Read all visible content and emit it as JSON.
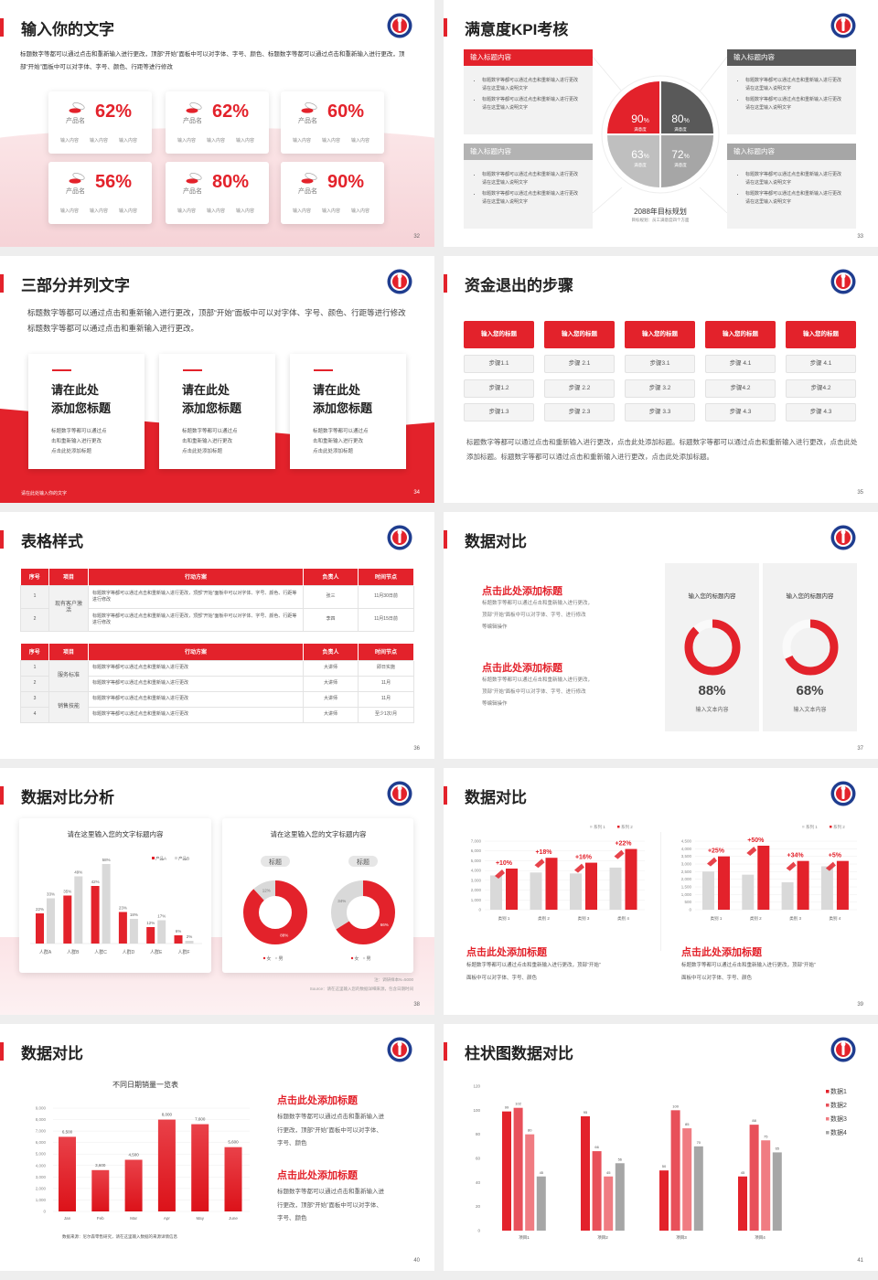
{
  "colors": {
    "accent": "#e3222b",
    "dark": "#595959",
    "gray": "#a6a6a6",
    "light": "#d9d9d9",
    "pink": "#f9dfe2",
    "blue": "#1f3d8f"
  },
  "logo_icon": "school-emblem-icon",
  "s32": {
    "title": "输入你的文字",
    "page": "32",
    "body": "标题数字等都可以通过点击和重新输入进行更改，顶部“开始”面板中可以对字体、字号、颜色、标题数字等都可以通过点击和重新输入进行更改，顶部“开始”面板中可以对字体、字号、颜色、行距等进行修改",
    "cards": [
      {
        "value": "62%",
        "name": "产品名",
        "items": [
          "输入内容",
          "输入内容",
          "输入内容"
        ]
      },
      {
        "value": "62%",
        "name": "产品名",
        "items": [
          "输入内容",
          "输入内容",
          "输入内容"
        ]
      },
      {
        "value": "60%",
        "name": "产品名",
        "items": [
          "输入内容",
          "输入内容",
          "输入内容"
        ]
      },
      {
        "value": "56%",
        "name": "产品名",
        "items": [
          "输入内容",
          "输入内容",
          "输入内容"
        ]
      },
      {
        "value": "80%",
        "name": "产品名",
        "items": [
          "输入内容",
          "输入内容",
          "输入内容"
        ]
      },
      {
        "value": "90%",
        "name": "产品名",
        "items": [
          "输入内容",
          "输入内容",
          "输入内容"
        ]
      }
    ]
  },
  "s33": {
    "title": "满意度KPI考核",
    "page": "33",
    "boxes": [
      {
        "header": "输入标题内容",
        "bullets": [
          "标题数字等都可以通过点击和重新输入进行更改 请在这里输入说明文字",
          "标题数字等都可以通过点击和重新输入进行更改 请在这里输入说明文字"
        ]
      },
      {
        "header": "输入标题内容",
        "bullets": [
          "标题数字等都可以通过点击和重新输入进行更改 请在这里输入说明文字",
          "标题数字等都可以通过点击和重新输入进行更改 请在这里输入说明文字"
        ]
      },
      {
        "header": "输入标题内容",
        "bullets": [
          "标题数字等都可以通过点击和重新输入进行更改 请在这里输入说明文字",
          "标题数字等都可以通过点击和重新输入进行更改 请在这里输入说明文字"
        ]
      },
      {
        "header": "输入标题内容",
        "bullets": [
          "标题数字等都可以通过点击和重新输入进行更改 请在这里输入说明文字",
          "标题数字等都可以通过点击和重新输入进行更改 请在这里输入说明文字"
        ]
      }
    ],
    "quadrants": [
      {
        "value": "90",
        "unit": "%",
        "label": "满意度",
        "color": "#e3222b"
      },
      {
        "value": "80",
        "unit": "%",
        "label": "满意度",
        "color": "#595959"
      },
      {
        "value": "63",
        "unit": "%",
        "label": "满意度",
        "color": "#bfbfbf"
      },
      {
        "value": "72",
        "unit": "%",
        "label": "满意度",
        "color": "#a6a6a6"
      }
    ],
    "plan_title": "2088年目标规划",
    "plan_sub": "目标规划：员工满意度四个方面"
  },
  "s34": {
    "title": "三部分并列文字",
    "page": "34",
    "body": "标题数字等都可以通过点击和重新输入进行更改，顶部“开始”面板中可以对字体、字号、颜色、行距等进行修改标题数字等都可以通过点击和重新输入进行更改。",
    "cards": [
      {
        "line1": "请在此处",
        "line2": "添加您标题",
        "text": [
          "标题数字等都可以通过点",
          "击和重新输入进行更改",
          "点击此处添加标题"
        ]
      },
      {
        "line1": "请在此处",
        "line2": "添加您标题",
        "text": [
          "标题数字等都可以通过点",
          "击和重新输入进行更改",
          "点击此处添加标题"
        ]
      },
      {
        "line1": "请在此处",
        "line2": "添加您标题",
        "text": [
          "标题数字等都可以通过点",
          "击和重新输入进行更改",
          "点击此处添加标题"
        ]
      }
    ],
    "footer": "请在此处输入你的文字"
  },
  "s35": {
    "title": "资金退出的步骤",
    "page": "35",
    "columns": [
      {
        "header": "输入您的标题",
        "steps": [
          "步骤1.1",
          "步骤1.2",
          "步骤1.3"
        ]
      },
      {
        "header": "输入您的标题",
        "steps": [
          "步骤 2.1",
          "步骤 2.2",
          "步骤 2.3"
        ]
      },
      {
        "header": "输入您的标题",
        "steps": [
          "步骤3.1",
          "步骤 3.2",
          "步骤 3.3"
        ]
      },
      {
        "header": "输入您的标题",
        "steps": [
          "步骤 4.1",
          "步骤4.2",
          "步骤 4.3"
        ]
      },
      {
        "header": "输入您的标题",
        "steps": [
          "步骤 4.1",
          "步骤4.2",
          "步骤 4.3"
        ]
      }
    ],
    "body": "标题数字等都可以通过点击和重新输入进行更改，点击此处添加标题。标题数字等都可以通过点击和重新输入进行更改，点击此处添加标题。标题数字等都可以通过点击和重新输入进行更改，点击此处添加标题。"
  },
  "s36": {
    "title": "表格样式",
    "page": "36",
    "headers": [
      "序号",
      "项目",
      "行动方案",
      "负责人",
      "时间节点"
    ],
    "table1": {
      "groups": [
        {
          "project": "现有客户激活",
          "rows": [
            {
              "no": "1",
              "plan": "标题数字等都可以通过点击和重新输入进行更改，顶部“开始”面板中可以对字体、字号、颜色、行距等进行修改",
              "owner": "张三",
              "time": "11月30日前"
            },
            {
              "no": "2",
              "plan": "标题数字等都可以通过点击和重新输入进行更改，顶部“开始”面板中可以对字体、字号、颜色、行距等进行修改",
              "owner": "李四",
              "time": "11月15日前"
            }
          ]
        }
      ]
    },
    "table2": {
      "groups": [
        {
          "project": "服务标准",
          "rows": [
            {
              "no": "1",
              "plan": "标题数字等都可以通过点击和重新输入进行更改",
              "owner": "大讲师",
              "time": "即日实施"
            },
            {
              "no": "2",
              "plan": "标题数字等都可以通过点击和重新输入进行更改",
              "owner": "大讲师",
              "time": "11月"
            }
          ]
        },
        {
          "project": "销售技能",
          "rows": [
            {
              "no": "3",
              "plan": "标题数字等都可以通过点击和重新输入进行更改",
              "owner": "大讲师",
              "time": "11月"
            },
            {
              "no": "4",
              "plan": "标题数字等都可以通过点击和重新输入进行更改",
              "owner": "大讲师",
              "time": "至少1次/月"
            }
          ]
        }
      ]
    }
  },
  "s37": {
    "title": "数据对比",
    "page": "37",
    "blocks": [
      {
        "heading": "点击此处添加标题",
        "lines": [
          "标题数字等都可以通过点击和重新输入进行更改，",
          "顶部“开始”面板中可以对字体、字号、进行修改",
          "等编辑操作"
        ]
      },
      {
        "heading": "点击此处添加标题",
        "lines": [
          "标题数字等都可以通过点击和重新输入进行更改，",
          "顶部“开始”面板中可以对字体、字号、进行修改",
          "等编辑操作"
        ]
      }
    ],
    "panels": [
      {
        "title": "输入您的标题内容",
        "value": 88,
        "percent": "88%",
        "label": "输入文本内容"
      },
      {
        "title": "输入您的标题内容",
        "value": 68,
        "percent": "68%",
        "label": "输入文本内容"
      }
    ]
  },
  "s38": {
    "title": "数据对比分析",
    "page": "38",
    "note": "注：调研样本N=5000",
    "source": "Source：请在这里输入您的数据详细来源，包含日期时间"
  },
  "s39": {
    "title": "数据对比",
    "page": "39",
    "blocks": [
      {
        "heading": "点击此处添加标题",
        "lines": [
          "标题数字等都可以通过点击和重新输入进行更改，顶部“开始”",
          "面板中可以对字体、字号、颜色"
        ]
      },
      {
        "heading": "点击此处添加标题",
        "lines": [
          "标题数字等都可以通过点击和重新输入进行更改，顶部“开始”",
          "面板中可以对字体、字号、颜色"
        ]
      }
    ]
  },
  "s40": {
    "title": "数据对比",
    "page": "40",
    "source": "数据来源：尼尔森零售研究，请在这里输入数据的来源详情信息",
    "blocks": [
      {
        "heading": "点击此处添加标题",
        "lines": [
          "标题数字等都可以通过点击和重新输入进",
          "行更改，顶部“开始”面板中可以对字体、",
          "字号、颜色"
        ]
      },
      {
        "heading": "点击此处添加标题",
        "lines": [
          "标题数字等都可以通过点击和重新输入进",
          "行更改，顶部“开始”面板中可以对字体、",
          "字号、颜色"
        ]
      }
    ]
  },
  "s41": {
    "title": "柱状图数据对比",
    "page": "41"
  },
  "chart_data": [
    {
      "type": "bar",
      "title": "请在这里输入您的文字标题内容",
      "categories": [
        "人群A",
        "人群B",
        "人群C",
        "人群D",
        "人群E",
        "人群F"
      ],
      "series": [
        {
          "name": "产品A",
          "values": [
            22,
            35,
            42,
            23,
            12,
            6
          ],
          "labels": [
            "22%",
            "35%",
            "42%",
            "23%",
            "12%",
            "6%"
          ],
          "color": "#e3222b"
        },
        {
          "name": "产品B",
          "values": [
            33,
            49,
            58,
            18,
            17,
            2
          ],
          "labels": [
            "33%",
            "49%",
            "58%",
            "18%",
            "17%",
            "2%"
          ],
          "color": "#d9d9d9"
        }
      ],
      "legend": "top-right",
      "grid": false
    },
    {
      "type": "pie",
      "title": "请在这里输入您的文字标题内容",
      "subtitles": [
        "标题",
        "标题"
      ],
      "pies": [
        {
          "slices": [
            {
              "name": "女",
              "value": 88,
              "label": "88%",
              "color": "#e3222b"
            },
            {
              "name": "男",
              "value": 12,
              "label": "12%",
              "color": "#d9d9d9"
            }
          ]
        },
        {
          "slices": [
            {
              "name": "女",
              "value": 66,
              "label": "66%",
              "color": "#e3222b"
            },
            {
              "name": "男",
              "value": 34,
              "label": "34%",
              "color": "#d9d9d9"
            }
          ]
        }
      ],
      "legend": "bottom"
    },
    {
      "type": "bar",
      "categories": [
        "类别 1",
        "类别 2",
        "类别 3",
        "类别 4"
      ],
      "ylim": [
        0,
        7000
      ],
      "yticks": [
        "0",
        "1,000",
        "2,000",
        "3,000",
        "4,000",
        "5,000",
        "6,000",
        "7,000"
      ],
      "series": [
        {
          "name": "系列 1",
          "values": [
            3500,
            3800,
            3700,
            4300
          ],
          "color": "#d9d9d9"
        },
        {
          "name": "系列 2",
          "values": [
            4200,
            5300,
            4800,
            6200
          ],
          "color": "#e3222b"
        }
      ],
      "annotations": [
        "+10%",
        "+18%",
        "+16%",
        "+22%"
      ],
      "legend": "top-right",
      "grid": true
    },
    {
      "type": "bar",
      "categories": [
        "类别 1",
        "类别 2",
        "类别 3",
        "类别 4"
      ],
      "ylim": [
        0,
        4500
      ],
      "yticks": [
        "0",
        "500",
        "1,000",
        "1,500",
        "2,000",
        "2,500",
        "3,000",
        "3,500",
        "4,000",
        "4,500"
      ],
      "series": [
        {
          "name": "系列 1",
          "values": [
            2500,
            2300,
            1800,
            2850
          ],
          "color": "#d9d9d9"
        },
        {
          "name": "系列 2",
          "values": [
            3500,
            4200,
            3200,
            3200
          ],
          "color": "#e3222b"
        }
      ],
      "annotations": [
        "+25%",
        "+50%",
        "+34%",
        "+5%"
      ],
      "legend": "top-right",
      "grid": true
    },
    {
      "type": "bar",
      "title": "不同日期销量一览表",
      "categories": [
        "Jan",
        "Feb",
        "Mar",
        "Apr",
        "May",
        "June"
      ],
      "ylim": [
        0,
        9000
      ],
      "yticks": [
        "0",
        "1,000",
        "2,000",
        "3,000",
        "4,000",
        "5,000",
        "6,000",
        "7,000",
        "8,000",
        "9,000"
      ],
      "series": [
        {
          "values": [
            6500,
            3600,
            4500,
            8000,
            7600,
            5600
          ],
          "labels": [
            "6,500",
            "3,600",
            "4,500",
            "8,000",
            "7,600",
            "5,600"
          ],
          "color": "#e3222b"
        }
      ],
      "grid": true
    },
    {
      "type": "bar",
      "categories": [
        "项目1",
        "项目2",
        "项目3",
        "项目4"
      ],
      "ylim": [
        0,
        120
      ],
      "yticks": [
        "0",
        "20",
        "40",
        "60",
        "80",
        "100",
        "120"
      ],
      "series": [
        {
          "name": "数据1",
          "values": [
            99,
            95,
            50,
            45
          ],
          "color": "#e3222b"
        },
        {
          "name": "数据2",
          "values": [
            102,
            66,
            100,
            88
          ],
          "color": "#e8505a"
        },
        {
          "name": "数据3",
          "values": [
            80,
            45,
            85,
            75
          ],
          "color": "#f07c82"
        },
        {
          "name": "数据4",
          "values": [
            45,
            56,
            70,
            65
          ],
          "color": "#a6a6a6"
        }
      ],
      "legend": "right",
      "grid": false
    }
  ]
}
